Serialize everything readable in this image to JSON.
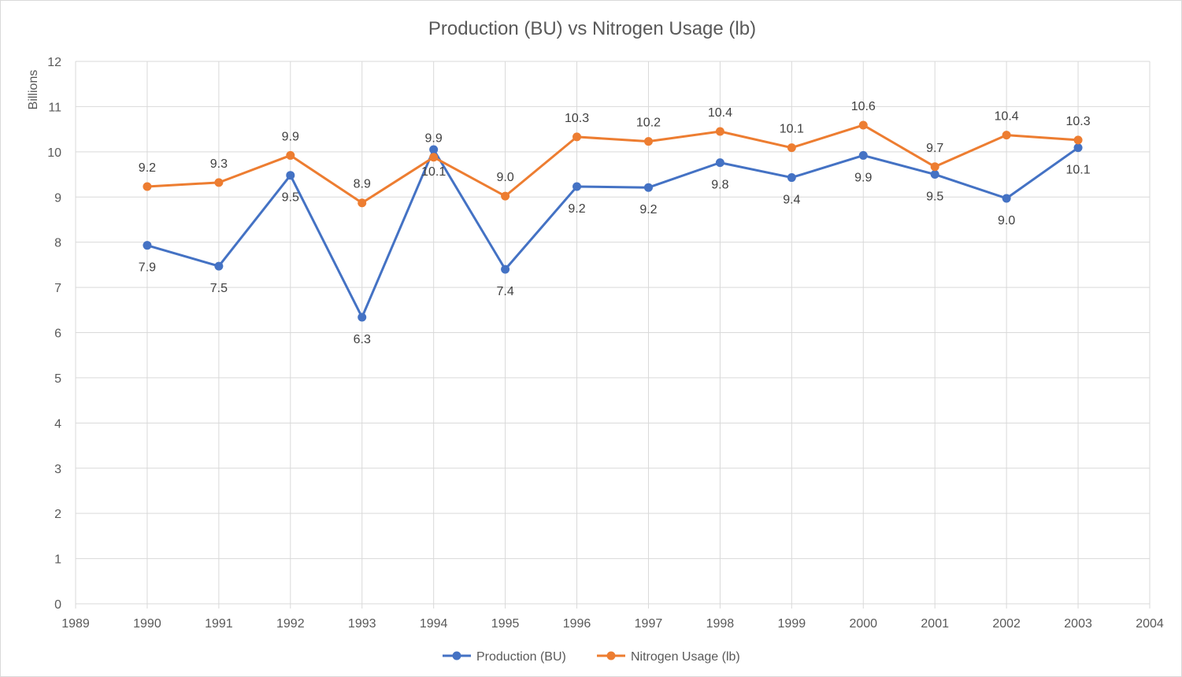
{
  "chart_data": {
    "type": "line",
    "title": "Production (BU) vs Nitrogen Usage (lb)",
    "ylabel": "Billions",
    "xlim": [
      1989,
      2004
    ],
    "ylim": [
      0,
      12
    ],
    "x_ticks": [
      1989,
      1990,
      1991,
      1992,
      1993,
      1994,
      1995,
      1996,
      1997,
      1998,
      1999,
      2000,
      2001,
      2002,
      2003,
      2004
    ],
    "y_ticks": [
      0,
      1,
      2,
      3,
      4,
      5,
      6,
      7,
      8,
      9,
      10,
      11,
      12
    ],
    "grid": true,
    "legend_position": "bottom",
    "x": [
      1990,
      1991,
      1992,
      1993,
      1994,
      1995,
      1996,
      1997,
      1998,
      1999,
      2000,
      2001,
      2002,
      2003
    ],
    "series": [
      {
        "name": "Production (BU)",
        "color": "#4472c4",
        "values": [
          7.93,
          7.47,
          9.48,
          6.34,
          10.05,
          7.4,
          9.23,
          9.21,
          9.76,
          9.43,
          9.92,
          9.5,
          8.97,
          10.09
        ],
        "labels": [
          "7.9",
          "7.5",
          "9.5",
          "6.3",
          "10.1",
          "7.4",
          "9.2",
          "9.2",
          "9.8",
          "9.4",
          "9.9",
          "9.5",
          "9.0",
          "10.1"
        ]
      },
      {
        "name": "Nitrogen Usage (lb)",
        "color": "#ed7d31",
        "values": [
          9.23,
          9.32,
          9.92,
          8.87,
          9.88,
          9.02,
          10.33,
          10.23,
          10.45,
          10.09,
          10.59,
          9.67,
          10.37,
          10.26
        ],
        "labels": [
          "9.2",
          "9.3",
          "9.9",
          "8.9",
          "9.9",
          "9.0",
          "10.3",
          "10.2",
          "10.4",
          "10.1",
          "10.6",
          "9.7",
          "10.4",
          "10.3"
        ]
      }
    ]
  },
  "colors": {
    "grid": "#d9d9d9",
    "text": "#595959"
  }
}
